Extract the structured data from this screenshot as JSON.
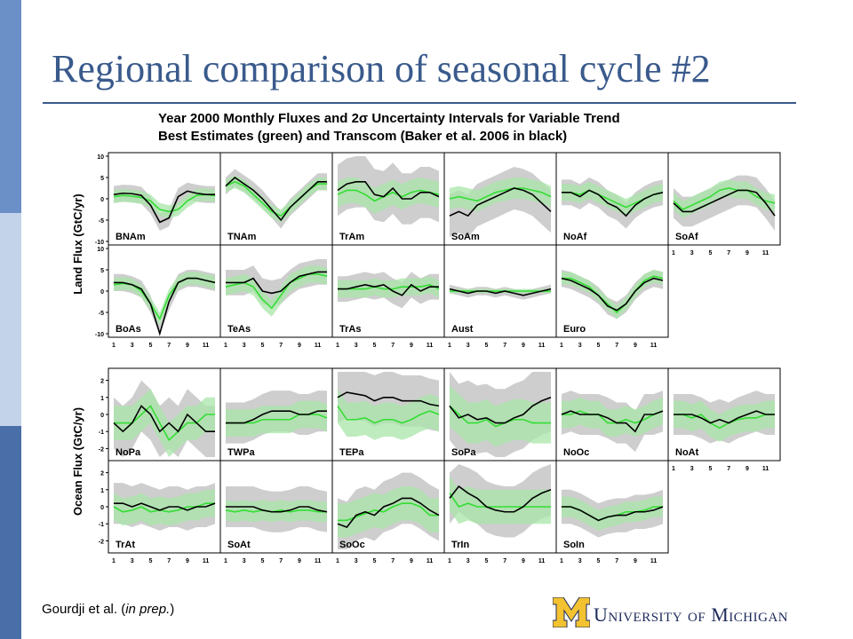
{
  "slide": {
    "title": "Regional comparison of seasonal cycle #2",
    "citation_author": "Gourdji et al. (",
    "citation_italic": "in prep.",
    "citation_end": ")",
    "logo_text": "University of Michigan",
    "stripe_colors": [
      "#6b8fc7",
      "#c3d3ea",
      "#4a6fa8"
    ]
  },
  "chart_data": {
    "type": "line",
    "title": "Year 2000 Monthly Fluxes and 2σ Uncertainty Intervals for Variable Trend",
    "subtitle": "Best Estimates (green) and Transcom (Baker et al. 2006 in black)",
    "colors": {
      "best_estimate": "#33dd33",
      "transcom": "#000000",
      "band_best": "#a8e6a8",
      "band_transcom": "#bdbdbd"
    },
    "x_ticks": [
      1,
      3,
      5,
      7,
      9,
      11
    ],
    "land": {
      "ylabel": "Land Flux (GtC/yr)",
      "ylim": [
        -10,
        10
      ],
      "y_ticks": [
        10,
        5,
        0,
        -5,
        -10
      ],
      "panels": [
        {
          "name": "BNAm",
          "green": [
            0.5,
            0.8,
            0.6,
            0.3,
            -0.5,
            -2.5,
            -3,
            -2.5,
            -0.5,
            0.8,
            1,
            0.7
          ],
          "black": [
            1,
            1.3,
            1.2,
            0.8,
            -1.5,
            -5.5,
            -4.5,
            0.5,
            1.8,
            1.3,
            1,
            1
          ],
          "gband": 1.5,
          "bband": 2
        },
        {
          "name": "TNAm",
          "green": [
            3,
            4,
            3,
            1,
            -1,
            -3,
            -4,
            -2,
            0,
            2,
            3.5,
            3.5
          ],
          "black": [
            3,
            5,
            3.5,
            2,
            0,
            -2.5,
            -5,
            -2,
            0,
            2,
            4,
            4
          ],
          "gband": 1.5,
          "bband": 2
        },
        {
          "name": "TrAm",
          "green": [
            1,
            2,
            2,
            1,
            -0.5,
            0.5,
            1.5,
            0.5,
            1.5,
            2,
            1.5,
            1
          ],
          "black": [
            2,
            3.5,
            4,
            4,
            1,
            0.5,
            2.5,
            0,
            0,
            1.5,
            1.5,
            0.5
          ],
          "gband": 3,
          "bband": 6
        },
        {
          "name": "SoAm",
          "green": [
            0,
            0.5,
            0,
            -0.5,
            0.5,
            1.5,
            2,
            2.5,
            2.5,
            2,
            1.5,
            0.5
          ],
          "black": [
            -4,
            -3,
            -4,
            -1.5,
            -0.5,
            0.5,
            1.5,
            2.5,
            2,
            1,
            -1,
            -3
          ],
          "gband": 2.5,
          "bband": 5
        },
        {
          "name": "NoAf",
          "green": [
            1.5,
            1.5,
            1,
            2,
            1,
            0,
            -1,
            -2,
            -1,
            0,
            1,
            1.5
          ],
          "black": [
            1.5,
            1.5,
            0.5,
            2,
            1,
            -1,
            -2,
            -4,
            -1.5,
            0,
            1,
            1.5
          ],
          "gband": 2,
          "bband": 3
        },
        {
          "name": "SoAf",
          "green": [
            -0.5,
            -2.5,
            -1.5,
            -0.5,
            0.5,
            2,
            2.5,
            2,
            2,
            0.5,
            -0.5,
            -1
          ],
          "black": [
            -1,
            -3,
            -3,
            -2,
            -1,
            0,
            1,
            2,
            2,
            1.5,
            -1,
            -4
          ],
          "gband": 2,
          "bband": 3.5
        }
      ]
    },
    "land2": {
      "panels": [
        {
          "name": "BoAs",
          "green": [
            1.5,
            1.8,
            1.5,
            0,
            -3,
            -6.5,
            -1,
            2,
            3,
            3,
            2.5,
            2
          ],
          "black": [
            2,
            2,
            1.5,
            0.5,
            -3,
            -10,
            -2.5,
            2,
            3,
            3,
            2.5,
            2
          ],
          "gband": 1.5,
          "bband": 2
        },
        {
          "name": "TeAs",
          "green": [
            1,
            1.5,
            2,
            1,
            -2,
            -4,
            -1,
            2,
            3,
            4,
            4,
            3.5
          ],
          "black": [
            2,
            2,
            2,
            3,
            0,
            -0.5,
            0,
            2,
            3.5,
            4,
            4.5,
            4.5
          ],
          "gband": 2,
          "bband": 3
        },
        {
          "name": "TrAs",
          "green": [
            0.5,
            0.5,
            0.5,
            0.5,
            1,
            0.5,
            0.5,
            1,
            1,
            1,
            1.5,
            0.5
          ],
          "black": [
            0.5,
            0.5,
            1,
            1.5,
            1,
            1.5,
            0,
            -1,
            1.5,
            0,
            1,
            1
          ],
          "gband": 2,
          "bband": 3
        },
        {
          "name": "Aust",
          "green": [
            0,
            0,
            0,
            0,
            0,
            0,
            0,
            0,
            0,
            0,
            0,
            0
          ],
          "black": [
            0.5,
            0,
            -0.5,
            0,
            0,
            -0.5,
            0,
            -0.5,
            -1,
            -0.5,
            0,
            0.5
          ],
          "gband": 0.5,
          "bband": 1
        },
        {
          "name": "Euro",
          "green": [
            3,
            3,
            2,
            1,
            -1,
            -3,
            -5,
            -3,
            0,
            2.5,
            3.5,
            3
          ],
          "black": [
            3,
            2.5,
            1.5,
            0.5,
            -1,
            -3.5,
            -4.5,
            -3,
            0,
            2,
            3,
            2.5
          ],
          "gband": 1.5,
          "bband": 2
        }
      ]
    },
    "ocean": {
      "ylabel": "Ocean Flux (GtC/yr)",
      "ylim": [
        -2.5,
        2.5
      ],
      "y_ticks": [
        2,
        1,
        0,
        -1,
        -2
      ],
      "panels": [
        {
          "name": "NoPa",
          "green": [
            -0.5,
            -0.5,
            -0.5,
            0,
            0.5,
            -0.5,
            -1.5,
            -1,
            -0.5,
            -0.5,
            0,
            0
          ],
          "black": [
            -0.5,
            -1,
            -0.5,
            0.5,
            0,
            -1,
            -0.5,
            -1,
            0,
            -0.5,
            -1,
            -1
          ],
          "gband": 1,
          "bband": 1.5
        },
        {
          "name": "TWPa",
          "green": [
            -0.5,
            -0.5,
            -0.5,
            -0.5,
            -0.3,
            -0.3,
            -0.3,
            -0.3,
            0,
            0,
            0,
            -0.2
          ],
          "black": [
            -0.5,
            -0.5,
            -0.5,
            -0.3,
            0,
            0.2,
            0.2,
            0.2,
            0,
            0,
            0.2,
            0.2
          ],
          "gband": 0.8,
          "bband": 1.2
        },
        {
          "name": "TEPa",
          "green": [
            0.5,
            -0.3,
            -0.3,
            -0.2,
            -0.5,
            -0.3,
            -0.3,
            -0.5,
            -0.3,
            0,
            0.2,
            0
          ],
          "black": [
            1,
            1.3,
            1.2,
            1.1,
            0.8,
            1,
            1,
            0.8,
            0.8,
            0.8,
            0.6,
            0.5
          ],
          "gband": 1,
          "bband": 1.5
        },
        {
          "name": "SoPa",
          "green": [
            0.5,
            0,
            -0.5,
            -0.5,
            -0.3,
            -0.7,
            -0.5,
            -0.3,
            -0.3,
            -0.5,
            -0.5,
            -0.5
          ],
          "black": [
            0.5,
            -0.2,
            0,
            -0.3,
            -0.2,
            -0.5,
            -0.5,
            -0.2,
            0,
            0.5,
            0.8,
            1
          ],
          "gband": 1.2,
          "bband": 2
        },
        {
          "name": "NoOc",
          "green": [
            0,
            0,
            0.2,
            0,
            0,
            -0.5,
            -0.5,
            -0.3,
            -0.5,
            -0.3,
            0,
            0.2
          ],
          "black": [
            0,
            0.2,
            0,
            0,
            0,
            -0.2,
            -0.5,
            -0.5,
            -1,
            0,
            0,
            0.2
          ],
          "gband": 0.8,
          "bband": 1.2
        },
        {
          "name": "NoAt",
          "green": [
            0,
            0,
            -0.2,
            0,
            -0.5,
            -0.8,
            -0.5,
            -0.3,
            -0.2,
            -0.2,
            0,
            0
          ],
          "black": [
            0,
            0,
            0,
            -0.2,
            -0.5,
            -0.3,
            -0.5,
            -0.2,
            0,
            0.2,
            0,
            0
          ],
          "gband": 0.8,
          "bband": 1.2
        }
      ]
    },
    "ocean2": {
      "panels": [
        {
          "name": "TrAt",
          "green": [
            0,
            -0.3,
            -0.2,
            0,
            -0.3,
            -0.2,
            -0.3,
            -0.2,
            0,
            0,
            0.2,
            0.2
          ],
          "black": [
            0.2,
            0.2,
            0,
            0.2,
            0,
            -0.2,
            0,
            0,
            -0.2,
            0,
            0,
            0.2
          ],
          "gband": 0.8,
          "bband": 1.2
        },
        {
          "name": "SoAt",
          "green": [
            -0.2,
            -0.3,
            -0.2,
            -0.3,
            -0.2,
            -0.3,
            -0.2,
            -0.3,
            -0.2,
            -0.2,
            -0.3,
            -0.3
          ],
          "black": [
            0,
            0,
            0,
            0,
            -0.2,
            -0.3,
            -0.3,
            -0.2,
            0,
            0,
            -0.2,
            -0.3
          ],
          "gband": 0.6,
          "bband": 1.2
        },
        {
          "name": "SoOc",
          "green": [
            -0.8,
            -0.8,
            -0.6,
            -0.4,
            -0.2,
            -0.3,
            0,
            0.2,
            0.2,
            0,
            -0.5,
            -0.5
          ],
          "black": [
            -1,
            -1.2,
            -0.5,
            -0.3,
            -0.5,
            0,
            0.2,
            0.5,
            0.5,
            0.2,
            -0.2,
            -0.5
          ],
          "gband": 1,
          "bband": 1.5
        },
        {
          "name": "TrIn",
          "green": [
            0.8,
            0,
            0.2,
            0,
            0,
            0,
            0,
            0,
            0,
            0,
            0,
            0
          ],
          "black": [
            0.5,
            1.2,
            0.8,
            0.5,
            0,
            -0.2,
            -0.3,
            -0.3,
            0,
            0.5,
            0.8,
            1
          ],
          "gband": 1,
          "bband": 1.5
        },
        {
          "name": "SoIn",
          "green": [
            0,
            0,
            -0.2,
            -0.5,
            -0.8,
            -0.6,
            -0.5,
            -0.3,
            -0.3,
            -0.2,
            0,
            0
          ],
          "black": [
            0,
            0,
            -0.2,
            -0.5,
            -0.8,
            -0.6,
            -0.5,
            -0.5,
            -0.3,
            -0.3,
            -0.2,
            0
          ],
          "gband": 0.6,
          "bband": 1
        }
      ]
    }
  }
}
